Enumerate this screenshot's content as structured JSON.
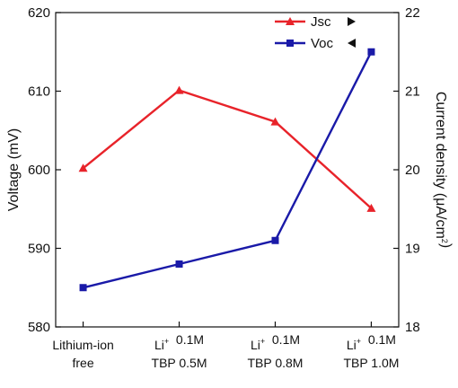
{
  "chart_data": {
    "type": "line",
    "categories": [
      {
        "lines": [
          [
            {
              "t": "Lithium-ion"
            }
          ],
          [
            {
              "t": "free"
            }
          ]
        ]
      },
      {
        "lines": [
          [
            {
              "t": "Li"
            },
            {
              "t": "+",
              "sup": true
            },
            {
              "t": "  0.1M"
            }
          ],
          [
            {
              "t": "TBP 0.5M"
            }
          ]
        ]
      },
      {
        "lines": [
          [
            {
              "t": "Li"
            },
            {
              "t": "+",
              "sup": true
            },
            {
              "t": "  0.1M"
            }
          ],
          [
            {
              "t": "TBP 0.8M"
            }
          ]
        ]
      },
      {
        "lines": [
          [
            {
              "t": "Li"
            },
            {
              "t": "+",
              "sup": true
            },
            {
              "t": "  0.1M"
            }
          ],
          [
            {
              "t": "TBP 1.0M"
            }
          ]
        ]
      }
    ],
    "y_left": {
      "label": "Voltage (mV)",
      "range": [
        580,
        620
      ],
      "ticks": [
        580,
        590,
        600,
        610,
        620
      ]
    },
    "y_right": {
      "label_parts": [
        {
          "t": "Current density (μA/cm"
        },
        {
          "t": "2",
          "sup": true
        },
        {
          "t": ")"
        }
      ],
      "range": [
        18,
        22
      ],
      "ticks": [
        18,
        19,
        20,
        21,
        22
      ]
    },
    "series": [
      {
        "name": "Jsc",
        "axis": "right",
        "marker": "triangle",
        "legend_arrow": "right",
        "color": "#e8232a",
        "values": [
          20.02,
          21.01,
          20.61,
          19.51
        ]
      },
      {
        "name": "Voc",
        "axis": "left",
        "marker": "square",
        "legend_arrow": "left",
        "color": "#1a1aa8",
        "values": [
          585,
          588,
          591,
          615
        ]
      }
    ],
    "legend_position": "top-right"
  }
}
